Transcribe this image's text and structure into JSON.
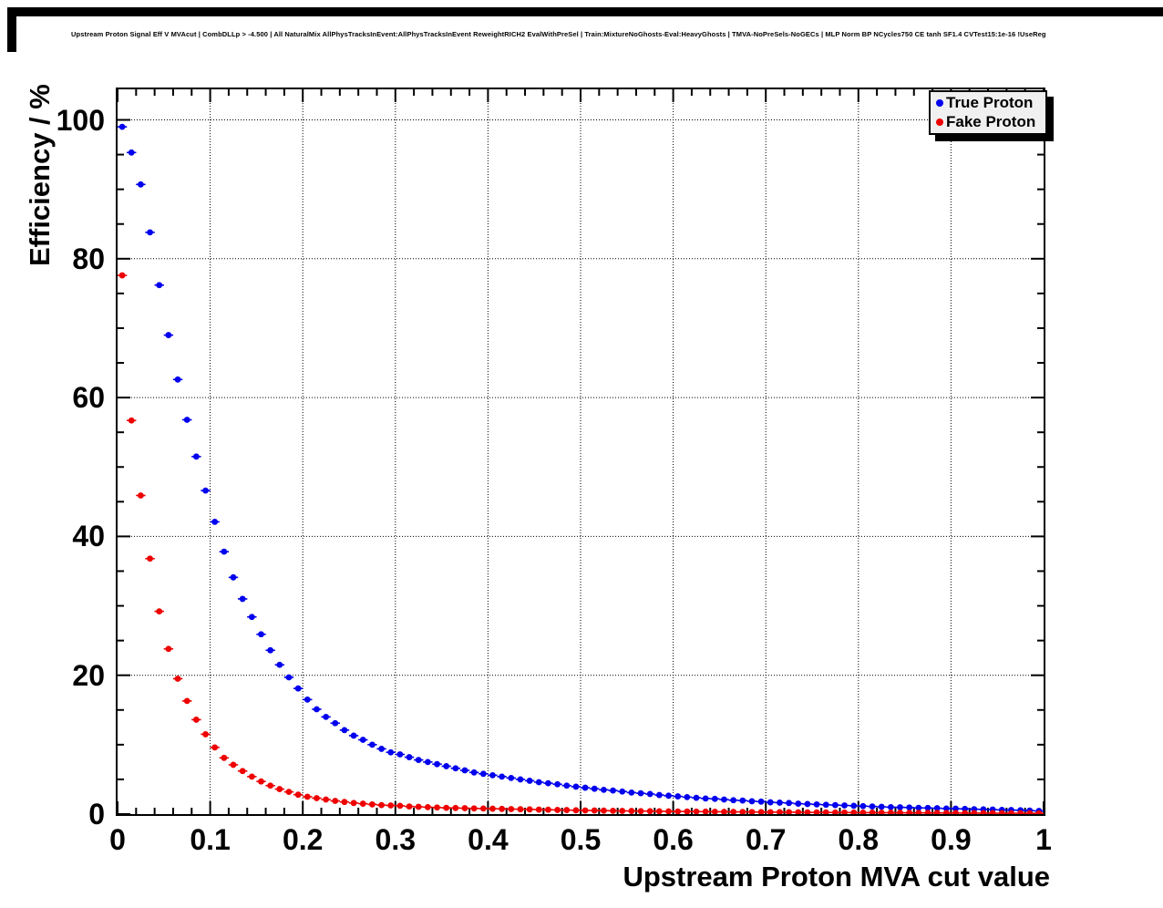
{
  "title": "Upstream Proton Signal Eff V MVAcut | CombDLLp > -4.500 | All NaturalMix AllPhysTracksInEvent:AllPhysTracksInEvent ReweightRICH2 EvalWithPreSel | Train:MixtureNoGhosts-Eval:HeavyGhosts | TMVA-NoPreSels-NoGECs | MLP Norm BP NCycles750 CE tanh SF1.4 CVTest15:1e-16 !UseReg",
  "legend": {
    "items": [
      {
        "label": "True Proton",
        "color": "#0000ee"
      },
      {
        "label": "Fake Proton",
        "color": "#ee0000"
      }
    ]
  },
  "colors": {
    "true_proton": "#0000ee",
    "fake_proton": "#ee0000",
    "frame": "#000000",
    "grid": "#000000",
    "legend_fill": "#f0f0f0"
  },
  "chart_data": {
    "type": "scatter",
    "title": "Upstream Proton Signal Eff V MVAcut | CombDLLp > -4.500 | All NaturalMix AllPhysTracksInEvent:AllPhysTracksInEvent ReweightRICH2 EvalWithPreSel | Train:MixtureNoGhosts-Eval:HeavyGhosts | TMVA-NoPreSels-NoGECs | MLP Norm BP NCycles750 CE tanh SF1.4 CVTest15:1e-16 !UseReg",
    "xlabel": "Upstream Proton MVA cut value",
    "ylabel": "Efficiency / %",
    "xlim": [
      0,
      1
    ],
    "ylim": [
      0,
      104.4
    ],
    "grid": true,
    "legend_position": "top-right",
    "x_tick_values": [
      0,
      0.1,
      0.2,
      0.3,
      0.4,
      0.5,
      0.6,
      0.7,
      0.8,
      0.9,
      1
    ],
    "x_tick_labels": [
      "0",
      "0.1",
      "0.2",
      "0.3",
      "0.4",
      "0.5",
      "0.6",
      "0.7",
      "0.8",
      "0.9",
      "1"
    ],
    "y_tick_values": [
      0,
      20,
      40,
      60,
      80,
      100
    ],
    "y_tick_labels": [
      "0",
      "20",
      "40",
      "60",
      "80",
      "100"
    ],
    "x_minor_tick_step": 0.02,
    "y_minor_tick_step": 5,
    "x_gridlines": [
      0.1,
      0.2,
      0.3,
      0.4,
      0.5,
      0.6,
      0.7,
      0.8,
      0.9
    ],
    "y_gridlines": [
      20,
      40,
      60,
      80,
      100
    ],
    "series": [
      {
        "name": "True Proton",
        "color": "#0000ee",
        "marker": "circle",
        "x": [
          0.005,
          0.015,
          0.025,
          0.035,
          0.045,
          0.055,
          0.065,
          0.075,
          0.085,
          0.095,
          0.105,
          0.115,
          0.125,
          0.135,
          0.145,
          0.155,
          0.165,
          0.175,
          0.185,
          0.195,
          0.205,
          0.215,
          0.225,
          0.235,
          0.245,
          0.255,
          0.265,
          0.275,
          0.285,
          0.295,
          0.305,
          0.315,
          0.325,
          0.335,
          0.345,
          0.355,
          0.365,
          0.375,
          0.385,
          0.395,
          0.405,
          0.415,
          0.425,
          0.435,
          0.445,
          0.455,
          0.465,
          0.475,
          0.485,
          0.495,
          0.505,
          0.515,
          0.525,
          0.535,
          0.545,
          0.555,
          0.565,
          0.575,
          0.585,
          0.595,
          0.605,
          0.615,
          0.625,
          0.635,
          0.645,
          0.655,
          0.665,
          0.675,
          0.685,
          0.695,
          0.705,
          0.715,
          0.725,
          0.735,
          0.745,
          0.755,
          0.765,
          0.775,
          0.785,
          0.795,
          0.805,
          0.815,
          0.825,
          0.835,
          0.845,
          0.855,
          0.865,
          0.875,
          0.885,
          0.895,
          0.905,
          0.915,
          0.925,
          0.935,
          0.945,
          0.955,
          0.965,
          0.975,
          0.985,
          0.995
        ],
        "y": [
          99.0,
          95.3,
          90.7,
          83.8,
          76.2,
          69.0,
          62.6,
          56.8,
          51.5,
          46.6,
          42.1,
          37.8,
          34.1,
          31.0,
          28.4,
          25.9,
          23.6,
          21.5,
          19.7,
          18.1,
          16.5,
          15.1,
          14.0,
          13.1,
          12.1,
          11.3,
          10.7,
          10.0,
          9.4,
          8.9,
          8.6,
          8.2,
          7.8,
          7.5,
          7.2,
          6.9,
          6.6,
          6.3,
          6.0,
          5.8,
          5.6,
          5.4,
          5.2,
          5.0,
          4.8,
          4.6,
          4.45,
          4.3,
          4.1,
          3.95,
          3.8,
          3.65,
          3.5,
          3.4,
          3.25,
          3.1,
          3.0,
          2.9,
          2.75,
          2.65,
          2.55,
          2.45,
          2.35,
          2.25,
          2.2,
          2.1,
          2.0,
          1.95,
          1.85,
          1.8,
          1.7,
          1.65,
          1.6,
          1.5,
          1.45,
          1.4,
          1.35,
          1.3,
          1.25,
          1.2,
          1.15,
          1.1,
          1.05,
          1.0,
          0.98,
          0.95,
          0.9,
          0.88,
          0.85,
          0.8,
          0.78,
          0.75,
          0.7,
          0.68,
          0.65,
          0.6,
          0.58,
          0.55,
          0.5,
          0.45
        ]
      },
      {
        "name": "Fake Proton",
        "color": "#ee0000",
        "marker": "circle",
        "x": [
          0.005,
          0.015,
          0.025,
          0.035,
          0.045,
          0.055,
          0.065,
          0.075,
          0.085,
          0.095,
          0.105,
          0.115,
          0.125,
          0.135,
          0.145,
          0.155,
          0.165,
          0.175,
          0.185,
          0.195,
          0.205,
          0.215,
          0.225,
          0.235,
          0.245,
          0.255,
          0.265,
          0.275,
          0.285,
          0.295,
          0.305,
          0.315,
          0.325,
          0.335,
          0.345,
          0.355,
          0.365,
          0.375,
          0.385,
          0.395,
          0.405,
          0.415,
          0.425,
          0.435,
          0.445,
          0.455,
          0.465,
          0.475,
          0.485,
          0.495,
          0.505,
          0.515,
          0.525,
          0.535,
          0.545,
          0.555,
          0.565,
          0.575,
          0.585,
          0.595,
          0.605,
          0.615,
          0.625,
          0.635,
          0.645,
          0.655,
          0.665,
          0.675,
          0.685,
          0.695,
          0.705,
          0.715,
          0.725,
          0.735,
          0.745,
          0.755,
          0.765,
          0.775,
          0.785,
          0.795,
          0.805,
          0.815,
          0.825,
          0.835,
          0.845,
          0.855,
          0.865,
          0.875,
          0.885,
          0.895,
          0.905,
          0.915,
          0.925,
          0.935,
          0.945,
          0.955,
          0.965,
          0.975,
          0.985,
          0.995
        ],
        "y": [
          77.6,
          56.7,
          45.9,
          36.8,
          29.2,
          23.8,
          19.5,
          16.3,
          13.6,
          11.5,
          9.6,
          8.1,
          7.1,
          6.2,
          5.4,
          4.7,
          4.1,
          3.6,
          3.2,
          2.8,
          2.5,
          2.3,
          2.1,
          1.9,
          1.75,
          1.6,
          1.5,
          1.4,
          1.3,
          1.25,
          1.2,
          1.1,
          1.05,
          1.0,
          0.95,
          0.9,
          0.88,
          0.85,
          0.82,
          0.8,
          0.78,
          0.75,
          0.72,
          0.7,
          0.68,
          0.65,
          0.63,
          0.6,
          0.58,
          0.55,
          0.53,
          0.52,
          0.5,
          0.48,
          0.46,
          0.45,
          0.43,
          0.42,
          0.4,
          0.39,
          0.38,
          0.37,
          0.36,
          0.35,
          0.34,
          0.33,
          0.32,
          0.31,
          0.3,
          0.29,
          0.28,
          0.28,
          0.27,
          0.26,
          0.25,
          0.25,
          0.24,
          0.23,
          0.23,
          0.22,
          0.21,
          0.21,
          0.2,
          0.2,
          0.19,
          0.18,
          0.18,
          0.17,
          0.17,
          0.16,
          0.16,
          0.15,
          0.15,
          0.14,
          0.14,
          0.13,
          0.13,
          0.12,
          0.12,
          0.11
        ]
      }
    ]
  }
}
